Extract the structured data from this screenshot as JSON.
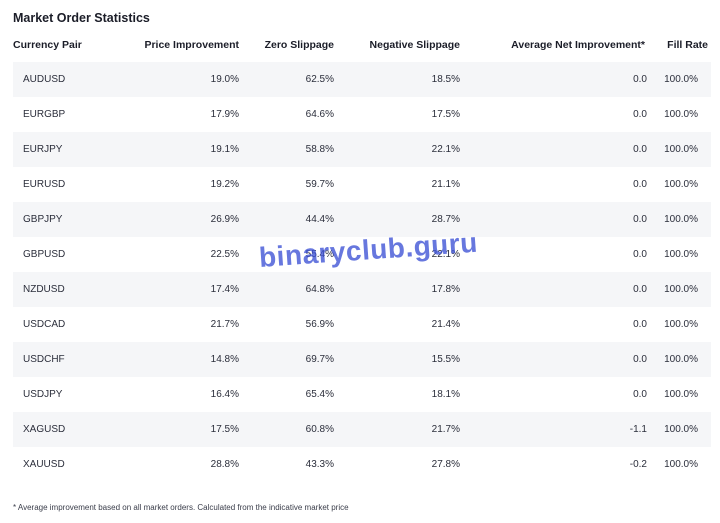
{
  "title": "Market Order Statistics",
  "columns": {
    "pair": "Currency Pair",
    "price": "Price Improvement",
    "zero": "Zero Slippage",
    "neg": "Negative Slippage",
    "avg": "Average Net Improvement*",
    "fill": "Fill Rate"
  },
  "rows": [
    {
      "pair": "AUDUSD",
      "price": "19.0%",
      "zero": "62.5%",
      "neg": "18.5%",
      "avg": "0.0",
      "fill": "100.0%"
    },
    {
      "pair": "EURGBP",
      "price": "17.9%",
      "zero": "64.6%",
      "neg": "17.5%",
      "avg": "0.0",
      "fill": "100.0%"
    },
    {
      "pair": "EURJPY",
      "price": "19.1%",
      "zero": "58.8%",
      "neg": "22.1%",
      "avg": "0.0",
      "fill": "100.0%"
    },
    {
      "pair": "EURUSD",
      "price": "19.2%",
      "zero": "59.7%",
      "neg": "21.1%",
      "avg": "0.0",
      "fill": "100.0%"
    },
    {
      "pair": "GBPJPY",
      "price": "26.9%",
      "zero": "44.4%",
      "neg": "28.7%",
      "avg": "0.0",
      "fill": "100.0%"
    },
    {
      "pair": "GBPUSD",
      "price": "22.5%",
      "zero": "55.4%",
      "neg": "22.1%",
      "avg": "0.0",
      "fill": "100.0%"
    },
    {
      "pair": "NZDUSD",
      "price": "17.4%",
      "zero": "64.8%",
      "neg": "17.8%",
      "avg": "0.0",
      "fill": "100.0%"
    },
    {
      "pair": "USDCAD",
      "price": "21.7%",
      "zero": "56.9%",
      "neg": "21.4%",
      "avg": "0.0",
      "fill": "100.0%"
    },
    {
      "pair": "USDCHF",
      "price": "14.8%",
      "zero": "69.7%",
      "neg": "15.5%",
      "avg": "0.0",
      "fill": "100.0%"
    },
    {
      "pair": "USDJPY",
      "price": "16.4%",
      "zero": "65.4%",
      "neg": "18.1%",
      "avg": "0.0",
      "fill": "100.0%"
    },
    {
      "pair": "XAGUSD",
      "price": "17.5%",
      "zero": "60.8%",
      "neg": "21.7%",
      "avg": "-1.1",
      "fill": "100.0%"
    },
    {
      "pair": "XAUUSD",
      "price": "28.8%",
      "zero": "43.3%",
      "neg": "27.8%",
      "avg": "-0.2",
      "fill": "100.0%"
    }
  ],
  "footnote": "* Average improvement based on all market orders. Calculated from the indicative market price",
  "watermark": "binaryclub.guru",
  "colors": {
    "stripe": "#f5f6f8",
    "text": "#1b1d28",
    "watermark": "#3d52d6"
  }
}
